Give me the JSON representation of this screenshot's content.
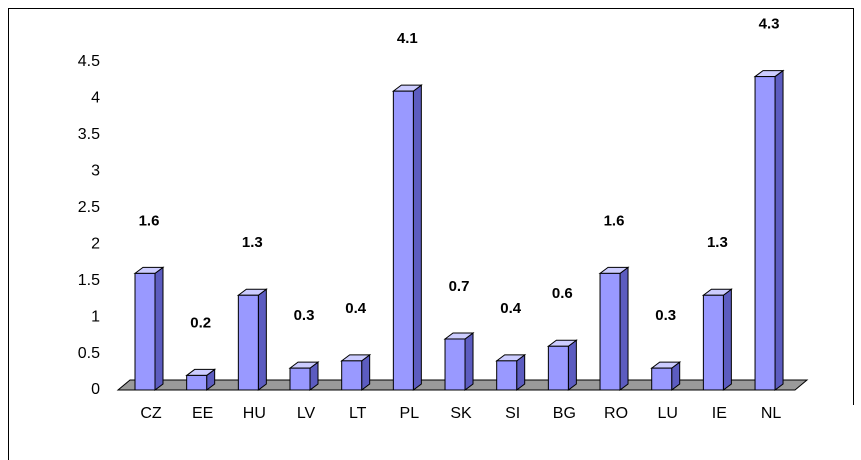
{
  "chart_data": {
    "type": "bar3d",
    "categories": [
      "CZ",
      "EE",
      "HU",
      "LV",
      "LT",
      "PL",
      "SK",
      "SI",
      "BG",
      "RO",
      "LU",
      "IE",
      "NL"
    ],
    "values": [
      1.6,
      0.2,
      1.3,
      0.3,
      0.4,
      4.1,
      0.7,
      0.4,
      0.6,
      1.6,
      0.3,
      1.3,
      4.3
    ],
    "color": "#9999ff",
    "ylim": [
      0,
      4.5
    ],
    "yticks": [
      0,
      0.5,
      1,
      1.5,
      2,
      2.5,
      3,
      3.5,
      4,
      4.5
    ],
    "grid": false
  }
}
